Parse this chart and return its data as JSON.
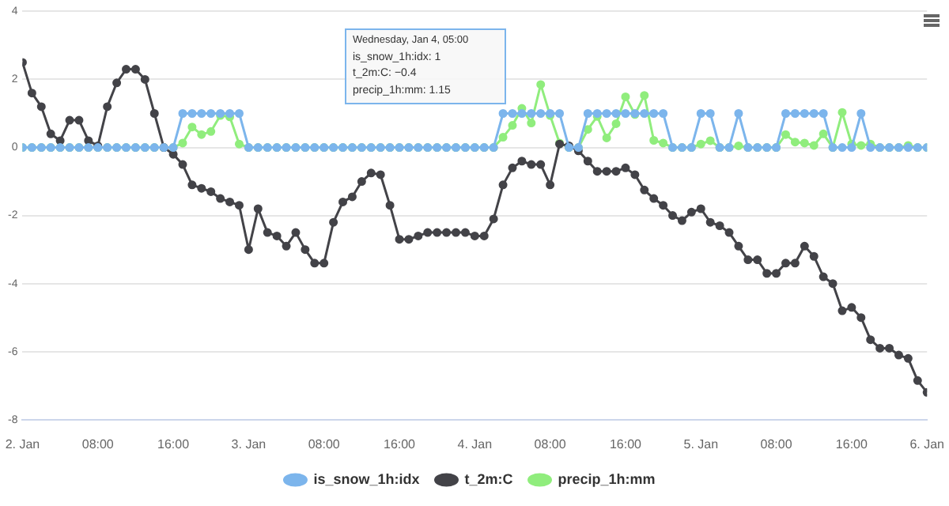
{
  "chart_data": {
    "type": "line",
    "x": [
      "--01-02T00:00",
      "--01-02T01:00",
      "--01-02T02:00",
      "--01-02T03:00",
      "--01-02T04:00",
      "--01-02T05:00",
      "--01-02T06:00",
      "--01-02T07:00",
      "--01-02T08:00",
      "--01-02T09:00",
      "--01-02T10:00",
      "--01-02T11:00",
      "--01-02T12:00",
      "--01-02T13:00",
      "--01-02T14:00",
      "--01-02T15:00",
      "--01-02T16:00",
      "--01-02T17:00",
      "--01-02T18:00",
      "--01-02T19:00",
      "--01-02T20:00",
      "--01-02T21:00",
      "--01-02T22:00",
      "--01-02T23:00",
      "--01-03T00:00",
      "--01-03T01:00",
      "--01-03T02:00",
      "--01-03T03:00",
      "--01-03T04:00",
      "--01-03T05:00",
      "--01-03T06:00",
      "--01-03T07:00",
      "--01-03T08:00",
      "--01-03T09:00",
      "--01-03T10:00",
      "--01-03T11:00",
      "--01-03T12:00",
      "--01-03T13:00",
      "--01-03T14:00",
      "--01-03T15:00",
      "--01-03T16:00",
      "--01-03T17:00",
      "--01-03T18:00",
      "--01-03T19:00",
      "--01-03T20:00",
      "--01-03T21:00",
      "--01-03T22:00",
      "--01-03T23:00",
      "--01-04T00:00",
      "--01-04T01:00",
      "--01-04T02:00",
      "--01-04T03:00",
      "--01-04T04:00",
      "--01-04T05:00",
      "--01-04T06:00",
      "--01-04T07:00",
      "--01-04T08:00",
      "--01-04T09:00",
      "--01-04T10:00",
      "--01-04T11:00",
      "--01-04T12:00",
      "--01-04T13:00",
      "--01-04T14:00",
      "--01-04T15:00",
      "--01-04T16:00",
      "--01-04T17:00",
      "--01-04T18:00",
      "--01-04T19:00",
      "--01-04T20:00",
      "--01-04T21:00",
      "--01-04T22:00",
      "--01-04T23:00",
      "--01-05T00:00",
      "--01-05T01:00",
      "--01-05T02:00",
      "--01-05T03:00",
      "--01-05T04:00",
      "--01-05T05:00",
      "--01-05T06:00",
      "--01-05T07:00",
      "--01-05T08:00",
      "--01-05T09:00",
      "--01-05T10:00",
      "--01-05T11:00",
      "--01-05T12:00",
      "--01-05T13:00",
      "--01-05T14:00",
      "--01-05T15:00",
      "--01-05T16:00",
      "--01-05T17:00",
      "--01-05T18:00",
      "--01-05T19:00",
      "--01-05T20:00",
      "--01-05T21:00",
      "--01-05T22:00",
      "--01-05T23:00",
      "--01-06T00:00"
    ],
    "series": [
      {
        "name": "is_snow_1h:idx",
        "color": "#7cb5ec",
        "values": [
          0,
          0,
          0,
          0,
          0,
          0,
          0,
          0,
          0,
          0,
          0,
          0,
          0,
          0,
          0,
          0,
          0,
          1,
          1,
          1,
          1,
          1,
          1,
          1,
          0,
          0,
          0,
          0,
          0,
          0,
          0,
          0,
          0,
          0,
          0,
          0,
          0,
          0,
          0,
          0,
          0,
          0,
          0,
          0,
          0,
          0,
          0,
          0,
          0,
          0,
          0,
          1,
          1,
          1,
          1,
          1,
          1,
          1,
          0,
          0,
          1,
          1,
          1,
          1,
          1,
          1,
          1,
          1,
          1,
          0,
          0,
          0,
          1,
          1,
          0,
          0,
          1,
          0,
          0,
          0,
          0,
          1,
          1,
          1,
          1,
          1,
          0,
          0,
          0,
          1,
          0,
          0,
          0,
          0,
          0,
          0,
          0
        ]
      },
      {
        "name": "t_2m:C",
        "color": "#434348",
        "values": [
          2.5,
          1.6,
          1.2,
          0.4,
          0.2,
          0.8,
          0.8,
          0.2,
          0.05,
          1.2,
          1.9,
          2.3,
          2.3,
          2.0,
          1.0,
          0,
          -0.2,
          -0.5,
          -1.1,
          -1.2,
          -1.3,
          -1.5,
          -1.6,
          -1.7,
          -3.0,
          -1.8,
          -2.5,
          -2.6,
          -2.9,
          -2.5,
          -3.0,
          -3.4,
          -3.4,
          -2.2,
          -1.6,
          -1.45,
          -1.0,
          -0.75,
          -0.8,
          -1.7,
          -2.7,
          -2.7,
          -2.6,
          -2.5,
          -2.5,
          -2.5,
          -2.5,
          -2.5,
          -2.6,
          -2.6,
          -2.1,
          -1.1,
          -0.6,
          -0.4,
          -0.5,
          -0.5,
          -1.1,
          0.1,
          0.05,
          -0.1,
          -0.4,
          -0.7,
          -0.7,
          -0.7,
          -0.6,
          -0.8,
          -1.25,
          -1.5,
          -1.7,
          -2.0,
          -2.15,
          -1.9,
          -1.8,
          -2.2,
          -2.3,
          -2.5,
          -2.9,
          -3.3,
          -3.3,
          -3.7,
          -3.7,
          -3.4,
          -3.4,
          -2.9,
          -3.2,
          -3.8,
          -4.0,
          -4.8,
          -4.7,
          -5.0,
          -5.65,
          -5.9,
          -5.9,
          -6.1,
          -6.2,
          -6.85,
          -7.2
        ]
      },
      {
        "name": "precip_1h:mm",
        "color": "#90ed7d",
        "values": [
          0,
          0,
          0,
          0,
          0,
          0,
          0,
          0,
          0,
          0,
          0,
          0,
          0,
          0,
          0,
          0,
          0,
          0.13,
          0.6,
          0.38,
          0.47,
          0.94,
          0.9,
          0.1,
          0,
          0,
          0,
          0,
          0,
          0,
          0,
          0,
          0,
          0,
          0,
          0,
          0,
          0,
          0,
          0,
          0,
          0,
          0,
          0,
          0,
          0,
          0,
          0,
          0,
          0,
          0,
          0.3,
          0.65,
          1.15,
          0.72,
          1.85,
          0.94,
          0.13,
          0,
          0,
          0.53,
          0.91,
          0.28,
          0.7,
          1.49,
          0.97,
          1.53,
          0.21,
          0.13,
          0,
          0,
          0,
          0.1,
          0.2,
          0,
          0,
          0.05,
          0,
          0,
          0,
          0,
          0.38,
          0.16,
          0.13,
          0.06,
          0.4,
          0,
          1.03,
          0.1,
          0.06,
          0.1,
          0,
          0,
          0,
          0.06,
          0,
          0
        ]
      }
    ],
    "xlim": [
      "--01-02T00:00",
      "--01-06T00:00"
    ],
    "xticks": [
      {
        "value": "--01-02T00:00",
        "label": "2. Jan"
      },
      {
        "value": "--01-02T08:00",
        "label": "08:00"
      },
      {
        "value": "--01-02T16:00",
        "label": "16:00"
      },
      {
        "value": "--01-03T00:00",
        "label": "3. Jan"
      },
      {
        "value": "--01-03T08:00",
        "label": "08:00"
      },
      {
        "value": "--01-03T16:00",
        "label": "16:00"
      },
      {
        "value": "--01-04T00:00",
        "label": "4. Jan"
      },
      {
        "value": "--01-04T08:00",
        "label": "08:00"
      },
      {
        "value": "--01-04T16:00",
        "label": "16:00"
      },
      {
        "value": "--01-05T00:00",
        "label": "5. Jan"
      },
      {
        "value": "--01-05T08:00",
        "label": "08:00"
      },
      {
        "value": "--01-05T16:00",
        "label": "16:00"
      },
      {
        "value": "--01-06T00:00",
        "label": "6. Jan"
      }
    ],
    "ylim": [
      -8,
      4
    ],
    "yticks": [
      -8,
      -6,
      -4,
      -2,
      0,
      2,
      4
    ],
    "grid": "y",
    "legend": "bottom",
    "marker": "circle",
    "line_style": "solid",
    "annotations": [
      "Wednesday, Jan 4, 05:00",
      "is_snow_1h:idx: 1",
      "t_2m:C: −0.4",
      "precip_1h:mm: 1.15"
    ]
  }
}
